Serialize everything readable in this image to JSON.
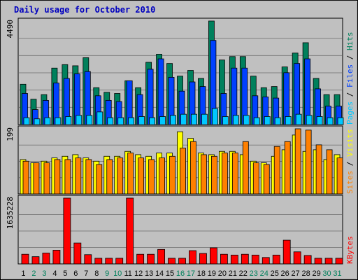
{
  "chart_data": {
    "type": "bar",
    "title": "Daily usage for October 2010",
    "categories": [
      "1",
      "2",
      "3",
      "4",
      "5",
      "6",
      "7",
      "8",
      "9",
      "10",
      "11",
      "12",
      "13",
      "14",
      "15",
      "16",
      "17",
      "18",
      "19",
      "20",
      "21",
      "22",
      "23",
      "24",
      "25",
      "26",
      "27",
      "28",
      "29",
      "30",
      "31"
    ],
    "weekend_days": [
      "2",
      "3",
      "9",
      "10",
      "16",
      "17",
      "23",
      "24",
      "30",
      "31"
    ],
    "panels": [
      {
        "id": "hits",
        "ymax_label": "4490",
        "ymax": 4490,
        "side_label": [
          "Pages",
          "Files",
          "Hits"
        ],
        "series": [
          {
            "name": "Hits",
            "color": "#00805c",
            "values": [
              1750,
              1100,
              1300,
              2450,
              2600,
              2550,
              2900,
              1600,
              1400,
              1350,
              1900,
              1600,
              2700,
              3050,
              2650,
              2100,
              2350,
              2000,
              4490,
              2800,
              2950,
              2950,
              2100,
              1600,
              1650,
              2500,
              3100,
              3550,
              2000,
              1300,
              1300
            ]
          },
          {
            "name": "Files",
            "color": "#0040ff",
            "values": [
              1350,
              650,
              1050,
              1800,
              2000,
              2200,
              2300,
              1250,
              1050,
              1000,
              1900,
              1300,
              2400,
              2850,
              2050,
              1450,
              1850,
              1650,
              3650,
              1350,
              2450,
              2450,
              1250,
              1200,
              1150,
              2250,
              2650,
              2850,
              1550,
              800,
              800
            ]
          },
          {
            "name": "Pages",
            "color": "#00c8ff",
            "values": [
              300,
              250,
              300,
              300,
              350,
              400,
              400,
              550,
              300,
              300,
              300,
              350,
              300,
              350,
              400,
              450,
              450,
              450,
              700,
              350,
              400,
              400,
              300,
              350,
              300,
              350,
              450,
              400,
              350,
              300,
              300
            ]
          }
        ]
      },
      {
        "id": "visits",
        "ymax_label": "199",
        "ymax": 199,
        "side_label": [
          "Sites",
          "Visits"
        ],
        "series": [
          {
            "name": "Visits",
            "color": "#ffff00",
            "values": [
              105,
              95,
              100,
              110,
              115,
              120,
              110,
              100,
              115,
              115,
              130,
              120,
              115,
              125,
              125,
              190,
              170,
              125,
              120,
              130,
              130,
              120,
              100,
              95,
              115,
              135,
              180,
              130,
              135,
              105,
              120
            ]
          },
          {
            "name": "Sites",
            "color": "#ff8000",
            "values": [
              100,
              95,
              95,
              105,
              105,
              110,
              105,
              90,
              105,
              110,
              125,
              110,
              105,
              110,
              115,
              140,
              160,
              120,
              115,
              125,
              125,
              160,
              95,
              90,
              145,
              160,
              199,
              195,
              150,
              135,
              110
            ]
          }
        ]
      },
      {
        "id": "kbytes",
        "ymax_label": "1635228",
        "ymax": 1635228,
        "side_label": [
          "KBytes"
        ],
        "series": [
          {
            "name": "KBytes",
            "color": "#ff0000",
            "values": [
              240000,
              180000,
              270000,
              340000,
              1635228,
              520000,
              230000,
              140000,
              140000,
              140000,
              1635228,
              240000,
              240000,
              360000,
              140000,
              140000,
              330000,
              260000,
              400000,
              240000,
              220000,
              240000,
              220000,
              160000,
              220000,
              590000,
              300000,
              210000,
              140000,
              140000,
              140000
            ]
          }
        ]
      }
    ]
  },
  "colors": {
    "background": "#c0c0c0",
    "plot_background": "#c0c0c0",
    "title": "#0000c0",
    "tick_label": "#000000",
    "weekend_tick_label": "#00805c",
    "gridline": "#808080"
  }
}
